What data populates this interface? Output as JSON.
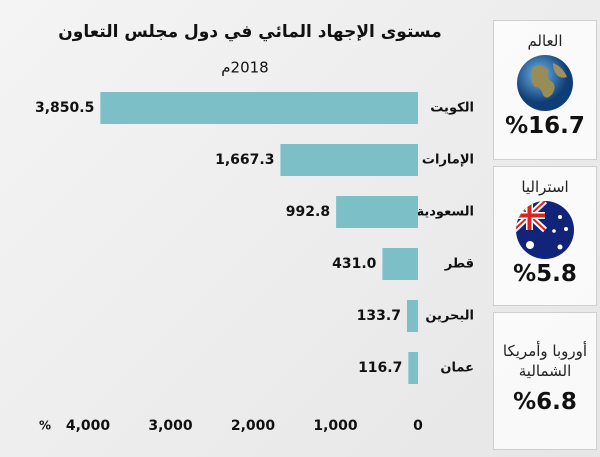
{
  "chart_data": {
    "type": "hbar",
    "title": "مستوى الإجهاد المائي في دول مجلس التعاون",
    "subtitle": "2018م",
    "x_unit": "%",
    "categories": [
      "الكويت",
      "الإمارات",
      "السعودية",
      "قطر",
      "البحرين",
      "عمان"
    ],
    "values": [
      3850.5,
      1667.3,
      992.8,
      431.0,
      133.7,
      116.7
    ],
    "value_labels": [
      "3,850.5",
      "1,667.3",
      "992.8",
      "431.0",
      "133.7",
      "116.7"
    ],
    "color": "#7cbfc6",
    "xlim": [
      0,
      4000
    ],
    "xticks": [
      0,
      {
        "value": 1000,
        "label": "1,000"
      },
      {
        "value": 2000,
        "label": "2,000"
      },
      {
        "value": 3000,
        "label": "3,000"
      },
      {
        "value": 4000,
        "label": "4,000"
      }
    ],
    "grid": false
  },
  "side_panels": [
    {
      "label": "العالم",
      "value": "%16.7"
    },
    {
      "label": "استراليا",
      "value": "%5.8"
    },
    {
      "label": "أوروبا وأمريكا الشمالية",
      "value": "%6.8"
    }
  ]
}
